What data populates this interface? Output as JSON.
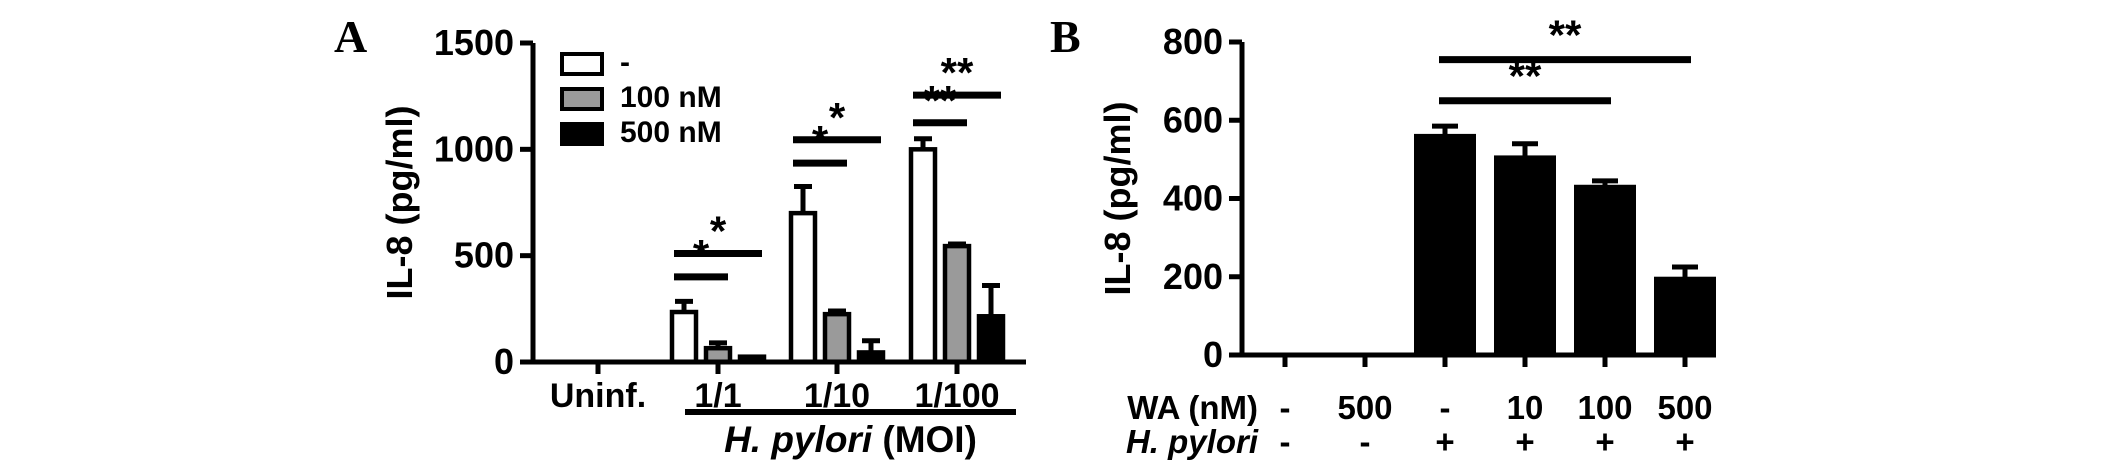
{
  "figure": {
    "panel_a_letter": "A",
    "panel_b_letter": "B",
    "background_color": "#ffffff",
    "ink_color": "#000000"
  },
  "chart_data": [
    {
      "type": "grouped-bar",
      "panel": "A",
      "title": "",
      "ylabel": "IL-8 (pg/ml)",
      "ylim": [
        0,
        1500
      ],
      "yticks": [
        0,
        500,
        1000,
        1500
      ],
      "categories": [
        "Uninf.",
        "1/1",
        "1/10",
        "1/100"
      ],
      "series": [
        {
          "name": "-",
          "fill": "#ffffff",
          "values": [
            0,
            235,
            700,
            1000
          ],
          "errors": [
            0,
            50,
            125,
            50
          ]
        },
        {
          "name": "100 nM",
          "fill": "#9a9a9a",
          "values": [
            0,
            65,
            225,
            545
          ],
          "errors": [
            0,
            25,
            15,
            10
          ]
        },
        {
          "name": "500 nM",
          "fill": "#000000",
          "values": [
            0,
            25,
            45,
            215
          ],
          "errors": [
            0,
            0,
            55,
            145
          ]
        }
      ],
      "legend_position": "top-left-inside",
      "grid": false,
      "significance": [
        {
          "category_index": 1,
          "series_from": 0,
          "series_to": 1,
          "y": 400,
          "label": "*"
        },
        {
          "category_index": 1,
          "series_from": 0,
          "series_to": 2,
          "y": 510,
          "label": "*"
        },
        {
          "category_index": 2,
          "series_from": 0,
          "series_to": 1,
          "y": 935,
          "label": "*"
        },
        {
          "category_index": 2,
          "series_from": 0,
          "series_to": 2,
          "y": 1045,
          "label": "*"
        },
        {
          "category_index": 3,
          "series_from": 0,
          "series_to": 1,
          "y": 1125,
          "label": "**"
        },
        {
          "category_index": 3,
          "series_from": 0,
          "series_to": 2,
          "y": 1255,
          "label": "**"
        }
      ],
      "x_group_label": {
        "italic": "H. pylori",
        "rest": " (MOI)",
        "underline_from_category": "1/1",
        "underline_to_category": "1/100"
      }
    },
    {
      "type": "bar",
      "panel": "B",
      "title": "",
      "ylabel": "IL-8 (pg/ml)",
      "ylim": [
        0,
        800
      ],
      "yticks": [
        0,
        200,
        400,
        600,
        800
      ],
      "bar_fill": "#000000",
      "values": [
        0,
        0,
        560,
        505,
        430,
        195
      ],
      "errors": [
        0,
        0,
        25,
        35,
        15,
        30
      ],
      "grid": false,
      "x_rows": [
        {
          "label": "WA (nM)",
          "italic": false,
          "values": [
            "-",
            "500",
            "-",
            "10",
            "100",
            "500"
          ]
        },
        {
          "label": "H. pylori",
          "italic": true,
          "values": [
            "-",
            "-",
            "+",
            "+",
            "+",
            "+"
          ]
        }
      ],
      "significance": [
        {
          "from": 2,
          "to": 4,
          "y": 650,
          "label": "**"
        },
        {
          "from": 2,
          "to": 5,
          "y": 755,
          "label": "**"
        }
      ]
    }
  ]
}
